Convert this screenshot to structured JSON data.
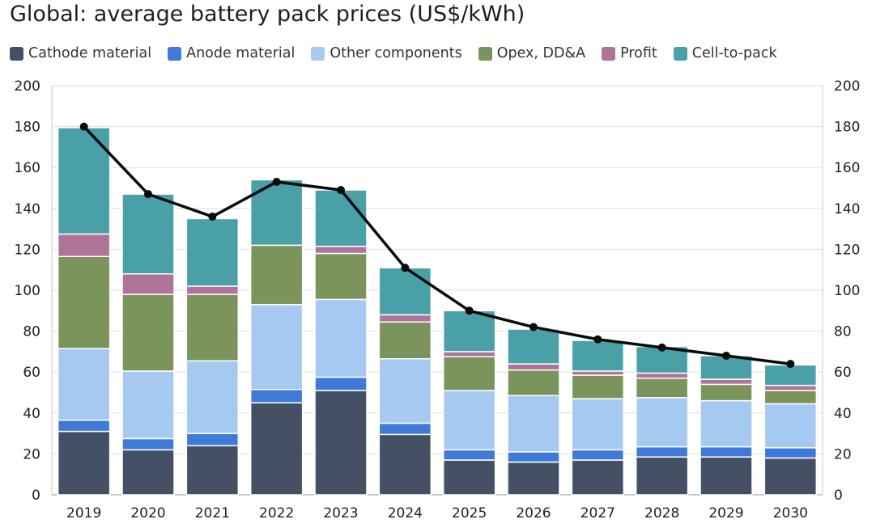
{
  "chart_data": {
    "type": "bar",
    "stacked": true,
    "title": "Global: average battery pack prices (US$/kWh)",
    "xlabel": "",
    "ylabel": "",
    "ylim": [
      0,
      200
    ],
    "yticks": [
      0,
      20,
      40,
      60,
      80,
      100,
      120,
      140,
      160,
      180,
      200
    ],
    "grid": true,
    "legend_position": "top-left",
    "categories": [
      "2019",
      "2020",
      "2021",
      "2022",
      "2023",
      "2024",
      "2025",
      "2026",
      "2027",
      "2028",
      "2029",
      "2030"
    ],
    "series": [
      {
        "name": "Cathode material",
        "color": "#445165",
        "values": [
          31,
          22,
          24,
          45,
          51,
          29.5,
          17,
          16,
          17,
          18.5,
          18.5,
          18
        ]
      },
      {
        "name": "Anode material",
        "color": "#3f7ad8",
        "values": [
          5.5,
          5.5,
          6,
          6.5,
          6.5,
          5.5,
          5,
          5,
          5,
          5,
          5,
          5
        ]
      },
      {
        "name": "Other components",
        "color": "#a6c9f2",
        "values": [
          35,
          33,
          35.5,
          41.5,
          38,
          31.5,
          29,
          27.5,
          25,
          24,
          22.5,
          21.5
        ]
      },
      {
        "name": "Opex, DD&A",
        "color": "#7a945c",
        "values": [
          45,
          37.5,
          32.5,
          29,
          22.5,
          18,
          16.5,
          12.5,
          11.5,
          9.5,
          8,
          6.5
        ]
      },
      {
        "name": "Profit",
        "color": "#b07399",
        "values": [
          11,
          10,
          4,
          0,
          3.5,
          3.5,
          2.5,
          3,
          2,
          2.5,
          2.5,
          2.5
        ]
      },
      {
        "name": "Cell-to-pack",
        "color": "#4aa0a7",
        "values": [
          52,
          39,
          33,
          32,
          27.5,
          23,
          20,
          17,
          15,
          13,
          11.5,
          10
        ]
      }
    ],
    "line": {
      "color": "#0a0a0a",
      "values": [
        180,
        147,
        136,
        153,
        149,
        111,
        90,
        82,
        76,
        72,
        68,
        64
      ]
    }
  }
}
